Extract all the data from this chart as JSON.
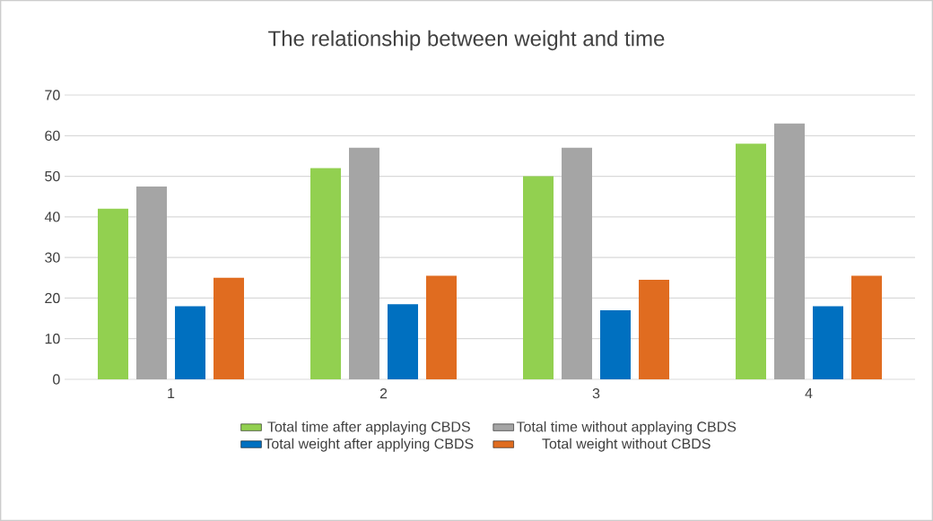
{
  "chart_data": {
    "type": "bar",
    "title": "The relationship between weight and time",
    "categories": [
      "1",
      "2",
      "3",
      "4"
    ],
    "series": [
      {
        "name": "Total time after applaying CBDS",
        "color": "#92d050",
        "values": [
          42,
          52,
          50,
          58
        ]
      },
      {
        "name": "Total time without applaying CBDS",
        "color": "#a5a5a5",
        "values": [
          47.5,
          57,
          57,
          63
        ]
      },
      {
        "name": "Total weight after applying CBDS",
        "color": "#0070c0",
        "values": [
          18,
          18.5,
          17,
          18
        ]
      },
      {
        "name": "Total weight without CBDS",
        "color": "#e06c20",
        "values": [
          25,
          25.5,
          24.5,
          25.5
        ]
      }
    ],
    "ylim": [
      0,
      70
    ],
    "yticks": [
      0,
      10,
      20,
      30,
      40,
      50,
      60,
      70
    ],
    "grid": "y",
    "legend": "bottom"
  }
}
